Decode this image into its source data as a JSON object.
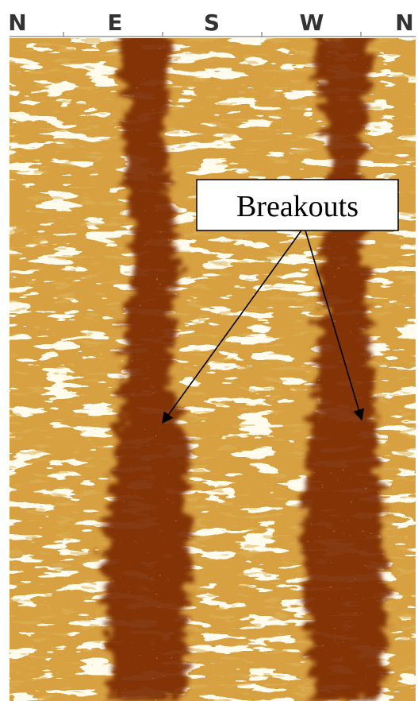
{
  "compass_labels": [
    "N",
    "E",
    "S",
    "W",
    "N"
  ],
  "annotation": "Breakouts"
}
